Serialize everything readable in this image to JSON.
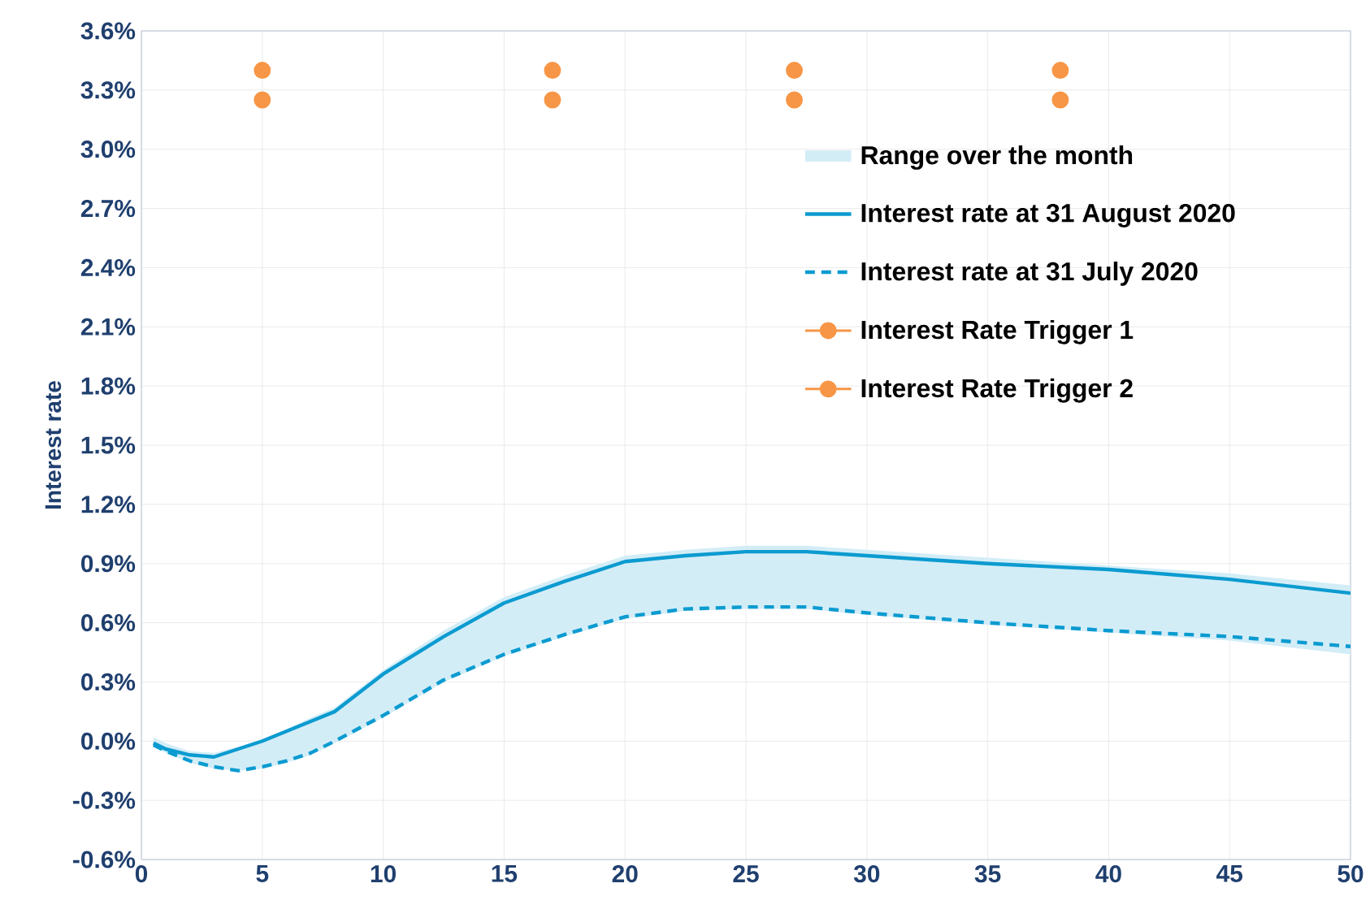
{
  "chart_data": {
    "type": "line",
    "ylabel": "Interest rate",
    "xlim": [
      0,
      50
    ],
    "ylim": [
      -0.6,
      3.6
    ],
    "xticks": [
      0,
      5,
      10,
      15,
      20,
      25,
      30,
      35,
      40,
      45,
      50
    ],
    "yticks": [
      {
        "value": -0.6,
        "label": "-0.6%"
      },
      {
        "value": -0.3,
        "label": "-0.3%"
      },
      {
        "value": 0,
        "label": "0.0%"
      },
      {
        "value": 0.3,
        "label": "0.3%"
      },
      {
        "value": 0.6,
        "label": "0.6%"
      },
      {
        "value": 0.9,
        "label": "0.9%"
      },
      {
        "value": 1.2,
        "label": "1.2%"
      },
      {
        "value": 1.5,
        "label": "1.5%"
      },
      {
        "value": 1.8,
        "label": "1.8%"
      },
      {
        "value": 2.1,
        "label": "2.1%"
      },
      {
        "value": 2.4,
        "label": "2.4%"
      },
      {
        "value": 2.7,
        "label": "2.7%"
      },
      {
        "value": 3.0,
        "label": "3.0%"
      },
      {
        "value": 3.3,
        "label": "3.3%"
      },
      {
        "value": 3.6,
        "label": "3.6%"
      }
    ],
    "grid": true,
    "legend": "right",
    "annotations": [
      "Range over the month"
    ],
    "x": [
      0.5,
      1,
      2,
      3,
      4,
      5,
      6,
      7,
      8,
      10,
      12.5,
      15,
      17.5,
      20,
      22.5,
      25,
      27.5,
      30,
      35,
      40,
      45,
      50
    ],
    "series": [
      {
        "name": "Interest rate at 31 August 2020",
        "color": "#0b9bd0",
        "line_style": "solid",
        "values": [
          -0.01,
          -0.04,
          -0.07,
          -0.08,
          -0.04,
          0,
          0.05,
          0.1,
          0.15,
          0.34,
          0.53,
          0.7,
          0.81,
          0.91,
          0.94,
          0.96,
          0.96,
          0.94,
          0.9,
          0.87,
          0.82,
          0.75
        ],
        "upper": [
          0.02,
          -0.01,
          -0.05,
          -0.06,
          -0.03,
          0.01,
          0.06,
          0.12,
          0.17,
          0.36,
          0.56,
          0.73,
          0.84,
          0.94,
          0.97,
          0.99,
          0.99,
          0.97,
          0.93,
          0.89,
          0.85,
          0.79
        ],
        "lower": [
          -0.03,
          -0.06,
          -0.11,
          -0.14,
          -0.15,
          -0.14,
          -0.11,
          -0.07,
          -0.01,
          0.12,
          0.3,
          0.43,
          0.53,
          0.62,
          0.66,
          0.67,
          0.67,
          0.64,
          0.59,
          0.55,
          0.51,
          0.44
        ]
      },
      {
        "name": "Interest rate at 31 July 2020",
        "color": "#0b9bd0",
        "line_style": "dashed",
        "values": [
          -0.02,
          -0.05,
          -0.1,
          -0.13,
          -0.15,
          -0.13,
          -0.1,
          -0.06,
          0.0,
          0.13,
          0.31,
          0.44,
          0.54,
          0.63,
          0.67,
          0.68,
          0.68,
          0.65,
          0.6,
          0.56,
          0.53,
          0.48
        ]
      },
      {
        "name": "Interest Rate Trigger 1",
        "type": "scatter",
        "marker": "circle",
        "color": "#f79646",
        "x": [
          5,
          17,
          27,
          38
        ],
        "values": [
          3.4,
          3.4,
          3.4,
          3.4
        ]
      },
      {
        "name": "Interest Rate Trigger 2",
        "type": "scatter",
        "marker": "circle",
        "color": "#f79646",
        "x": [
          5,
          17,
          27,
          38
        ],
        "values": [
          3.25,
          3.25,
          3.25,
          3.25
        ]
      }
    ]
  }
}
